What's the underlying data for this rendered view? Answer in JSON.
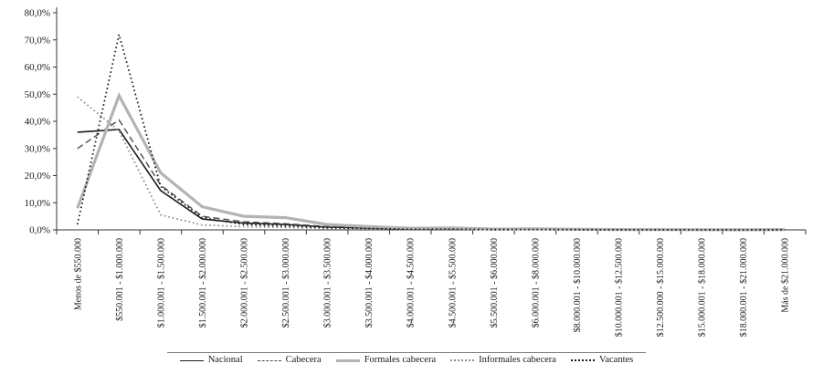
{
  "chart_data": {
    "type": "line",
    "title": "",
    "xlabel": "",
    "ylabel": "",
    "grid": false,
    "legend_position": "bottom",
    "ylim": [
      0,
      80
    ],
    "y_ticks": [
      "0,0%",
      "10,0%",
      "20,0%",
      "30,0%",
      "40,0%",
      "50,0%",
      "60,0%",
      "70,0%",
      "80,0%"
    ],
    "categories": [
      "Menos de $550.000",
      "$550.001 - $1.000.000",
      "$1.000.001 - $1.500.000",
      "$1.500.001 - $2.000.000",
      "$2.000.001 - $2.500.000",
      "$2.500.001 - $3.000.000",
      "$3.000.001 - $3.500.000",
      "$3.500.001 - $4.000.000",
      "$4.000.001 - $4.500.000",
      "$4.500.001 - $5.500.000",
      "$5.500.001 - $6.000.000",
      "$6.000.001 - $8.000.000",
      "$8.000.001 - $10.000.000",
      "$10.000.001 - $12.500.000",
      "$12.500.000 - $15.000.000",
      "$15.000.001 - $18.000.000",
      "$18.000.001 - $21.000.000",
      "Más de $21.000.000"
    ],
    "series": [
      {
        "name": "Nacional",
        "color": "#1a1a1a",
        "line_style": "solid",
        "line_width": 1.6,
        "values": [
          36.0,
          37.0,
          14.5,
          4.0,
          2.5,
          2.0,
          1.0,
          0.7,
          0.3,
          0.4,
          0.2,
          0.3,
          0.15,
          0.1,
          0.05,
          0.04,
          0.03,
          0.1
        ]
      },
      {
        "name": "Cabecera",
        "color": "#4d4d4d",
        "line_style": "dashed",
        "line_width": 1.4,
        "values": [
          30.0,
          40.5,
          16.5,
          5.0,
          3.0,
          2.3,
          1.2,
          0.8,
          0.4,
          0.5,
          0.25,
          0.35,
          0.2,
          0.12,
          0.08,
          0.05,
          0.04,
          0.12
        ]
      },
      {
        "name": "Formales cabecera",
        "color": "#b3b3b3",
        "line_style": "solid",
        "line_width": 3.2,
        "values": [
          8.0,
          49.5,
          21.0,
          8.5,
          5.0,
          4.5,
          2.0,
          1.2,
          0.6,
          0.7,
          0.3,
          0.4,
          0.25,
          0.15,
          0.1,
          0.08,
          0.05,
          0.15
        ]
      },
      {
        "name": "Informales cabecera",
        "color": "#8c8c8c",
        "line_style": "dotted",
        "line_width": 1.8,
        "values": [
          49.0,
          36.5,
          5.5,
          1.8,
          1.2,
          0.9,
          0.5,
          0.35,
          0.15,
          0.2,
          0.1,
          0.12,
          0.06,
          0.04,
          0.03,
          0.02,
          0.02,
          0.05
        ]
      },
      {
        "name": "Vacantes",
        "color": "#1a1a1a",
        "line_style": "dotted",
        "line_width": 1.8,
        "values": [
          2.0,
          72.0,
          16.0,
          4.5,
          2.0,
          1.4,
          0.8,
          0.5,
          0.2,
          0.25,
          0.1,
          0.12,
          0.06,
          0.04,
          0.03,
          0.02,
          0.01,
          0.03
        ]
      }
    ]
  }
}
